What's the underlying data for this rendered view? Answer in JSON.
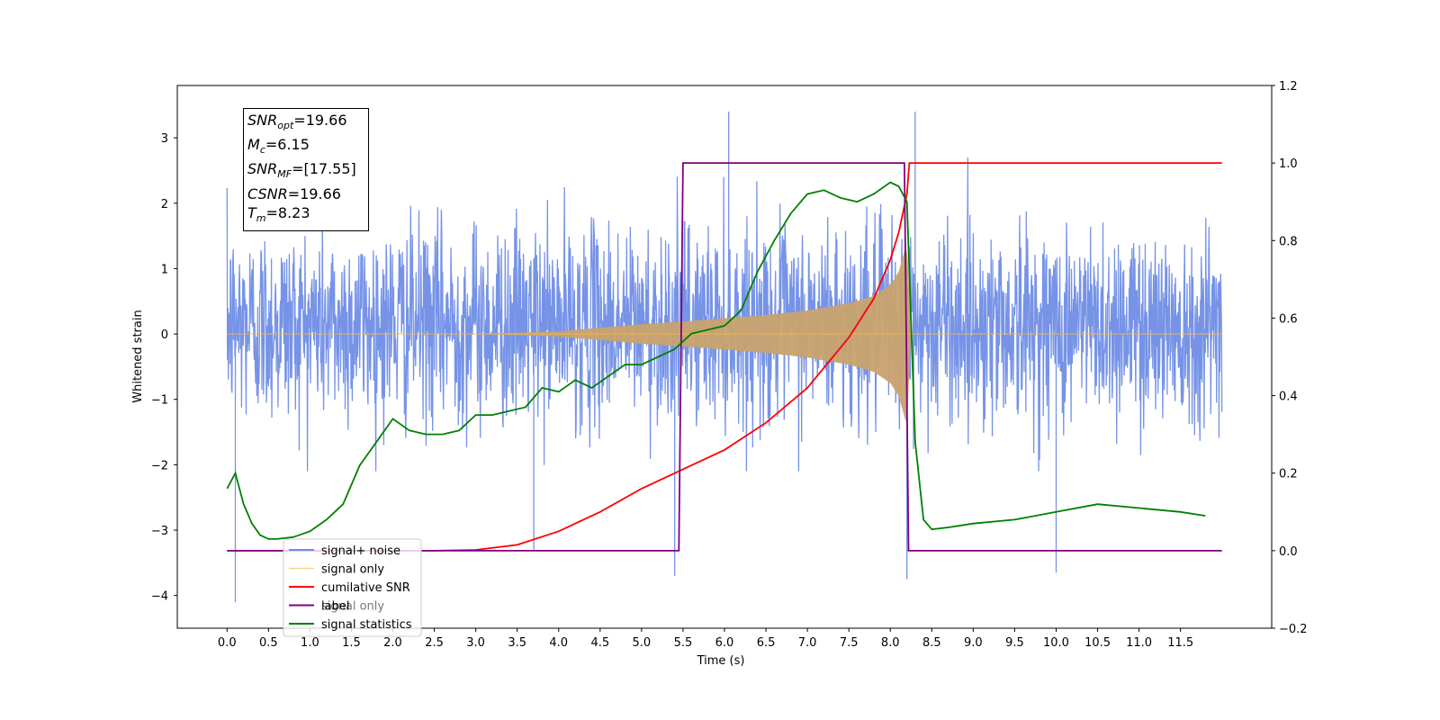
{
  "chart_data": {
    "type": "line",
    "xlabel": "Time (s)",
    "ylabel": "Whitened strain",
    "xlim": [
      -0.6,
      12.6
    ],
    "ylim": [
      -4.5,
      3.8
    ],
    "y2lim": [
      -0.2,
      1.2
    ],
    "xticks": [
      0.0,
      0.5,
      1.0,
      1.5,
      2.0,
      2.5,
      3.0,
      3.5,
      4.0,
      4.5,
      5.0,
      5.5,
      6.0,
      6.5,
      7.0,
      7.5,
      8.0,
      8.5,
      9.0,
      9.5,
      10.0,
      10.5,
      11.0,
      11.5
    ],
    "xtick_labels": [
      "0.0",
      "0.5",
      "1.0",
      "1.5",
      "2.0",
      "2.5",
      "3.0",
      "3.5",
      "4.0",
      "4.5",
      "5.0",
      "5.5",
      "6.0",
      "6.5",
      "7.0",
      "7.5",
      "8.0",
      "8.5",
      "9.0",
      "9.5",
      "10.0",
      "10.5",
      "11.0",
      "11.5"
    ],
    "yticks": [
      -4,
      -3,
      -2,
      -1,
      0,
      1,
      2,
      3
    ],
    "ytick_labels": [
      "−4",
      "−3",
      "−2",
      "−1",
      "0",
      "1",
      "2",
      "3"
    ],
    "y2ticks": [
      -0.2,
      0.0,
      0.2,
      0.4,
      0.6,
      0.8,
      1.0,
      1.2
    ],
    "y2tick_labels": [
      "−0.2",
      "0.0",
      "0.2",
      "0.4",
      "0.6",
      "0.8",
      "1.0",
      "1.2"
    ],
    "legend_position": "lower-left",
    "grid": false,
    "series": [
      {
        "name": "signal+ noise",
        "color": "#6f8de6",
        "axis": "left",
        "description_range": [
          0.0,
          12.0
        ],
        "noise_amplitude_typical": [
          -1.9,
          2.4
        ],
        "extreme_values": {
          "x": [
            0.1,
            3.7,
            5.4,
            6.05,
            8.2,
            8.3,
            10.0
          ],
          "y": [
            -4.1,
            -3.3,
            -3.7,
            3.4,
            -3.75,
            3.4,
            -3.65
          ]
        }
      },
      {
        "name": "signal only",
        "color": "#f5b94a",
        "axis": "left",
        "envelope": {
          "x": [
            0.0,
            3.0,
            4.0,
            5.0,
            5.5,
            6.0,
            6.5,
            7.0,
            7.5,
            7.8,
            8.0,
            8.1,
            8.2,
            8.25
          ],
          "amplitude": [
            0.0,
            0.0,
            0.04,
            0.15,
            0.19,
            0.24,
            0.29,
            0.36,
            0.47,
            0.58,
            0.75,
            0.95,
            1.4,
            0.0
          ]
        },
        "x_end": 12.0
      },
      {
        "name": "cumilative SNR",
        "color": "#ff0000",
        "axis": "right",
        "x": [
          0.0,
          2.5,
          3.0,
          3.5,
          4.0,
          4.5,
          5.0,
          5.5,
          6.0,
          6.5,
          7.0,
          7.5,
          7.8,
          8.0,
          8.1,
          8.2,
          8.23,
          12.0
        ],
        "y": [
          0.0,
          0.0,
          0.002,
          0.015,
          0.05,
          0.1,
          0.16,
          0.21,
          0.26,
          0.33,
          0.42,
          0.55,
          0.65,
          0.75,
          0.82,
          0.92,
          1.0,
          1.0
        ]
      },
      {
        "name": "label",
        "color": "#800080",
        "axis": "right",
        "x": [
          0.0,
          5.45,
          5.5,
          8.17,
          8.22,
          12.0
        ],
        "y": [
          0.0,
          0.0,
          1.0,
          1.0,
          0.0,
          0.0
        ]
      },
      {
        "name": "signal statistics",
        "color": "#008000",
        "axis": "right",
        "x": [
          0.0,
          0.1,
          0.2,
          0.3,
          0.4,
          0.5,
          0.6,
          0.8,
          1.0,
          1.2,
          1.4,
          1.6,
          1.8,
          2.0,
          2.2,
          2.4,
          2.6,
          2.8,
          3.0,
          3.2,
          3.4,
          3.6,
          3.8,
          4.0,
          4.2,
          4.4,
          4.6,
          4.8,
          5.0,
          5.2,
          5.4,
          5.6,
          5.8,
          6.0,
          6.2,
          6.4,
          6.6,
          6.8,
          7.0,
          7.2,
          7.4,
          7.6,
          7.8,
          8.0,
          8.1,
          8.2,
          8.3,
          8.4,
          8.5,
          8.7,
          9.0,
          9.5,
          10.0,
          10.5,
          11.0,
          11.5,
          11.8
        ],
        "y": [
          0.16,
          0.2,
          0.12,
          0.07,
          0.04,
          0.03,
          0.03,
          0.035,
          0.05,
          0.08,
          0.12,
          0.22,
          0.28,
          0.34,
          0.31,
          0.3,
          0.3,
          0.31,
          0.35,
          0.35,
          0.36,
          0.37,
          0.42,
          0.41,
          0.44,
          0.42,
          0.45,
          0.48,
          0.48,
          0.5,
          0.52,
          0.56,
          0.57,
          0.58,
          0.62,
          0.72,
          0.8,
          0.87,
          0.92,
          0.93,
          0.91,
          0.9,
          0.92,
          0.95,
          0.94,
          0.9,
          0.28,
          0.08,
          0.055,
          0.06,
          0.07,
          0.08,
          0.1,
          0.12,
          0.11,
          0.1,
          0.09
        ]
      }
    ]
  },
  "info_box": {
    "snr_opt_sym": "SNR",
    "snr_opt_sub": "opt",
    "snr_opt_val": "=19.66",
    "mc_sym": "M",
    "mc_sub": "c",
    "mc_val": "=6.15",
    "snr_mf_sym": "SNR",
    "snr_mf_sub": "MF",
    "snr_mf_val": "=[17.55]",
    "csnr_sym": "CSNR",
    "csnr_val": "=19.66",
    "tm_sym": "T",
    "tm_sub": "m",
    "tm_val": "=8.23"
  },
  "legend": {
    "items": [
      "signal+ noise",
      "signal only",
      "cumilative SNR",
      "label",
      "signal statistics"
    ],
    "hidden_item": "signal only"
  }
}
